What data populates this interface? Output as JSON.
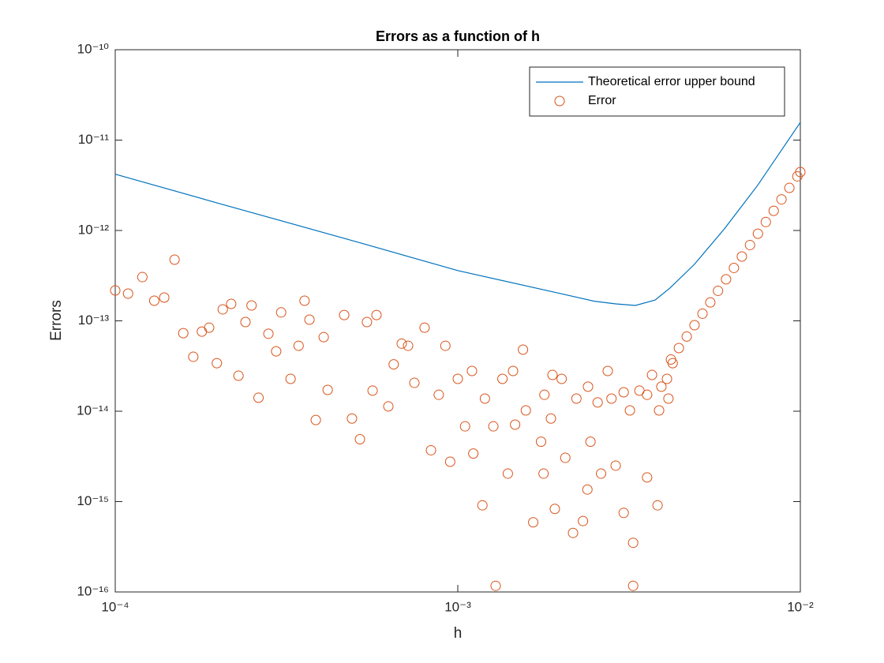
{
  "chart_data": {
    "type": "line",
    "title": "Errors as a function of h",
    "x_label": "h",
    "y_label": "Errors",
    "xscale": "log",
    "yscale": "log",
    "grid": false,
    "legend": "upper right",
    "xlim": [
      0.0001,
      0.01
    ],
    "ylim": [
      1e-16,
      1e-10
    ],
    "xticks": [
      {
        "value": 0.0001,
        "label": "10⁻⁴"
      },
      {
        "value": 0.001,
        "label": "10⁻³"
      },
      {
        "value": 0.01,
        "label": "10⁻²"
      }
    ],
    "yticks": [
      {
        "value": 1e-16,
        "label": "10⁻¹⁶"
      },
      {
        "value": 1e-15,
        "label": "10⁻¹⁵"
      },
      {
        "value": 1e-14,
        "label": "10⁻¹⁴"
      },
      {
        "value": 1e-13,
        "label": "10⁻¹³"
      },
      {
        "value": 1e-12,
        "label": "10⁻¹²"
      },
      {
        "value": 1e-11,
        "label": "10⁻¹¹"
      },
      {
        "value": 1e-10,
        "label": "10⁻¹⁰"
      }
    ],
    "series": [
      {
        "name": "Theoretical error upper bound",
        "type": "line",
        "color": "#0072bd",
        "x": [
          0.0001,
          0.0002,
          0.0005,
          0.001,
          0.002,
          0.0025,
          0.00289,
          0.0033,
          0.00377,
          0.00416,
          0.0049,
          0.006,
          0.0075,
          0.01
        ],
        "values": [
          4.2e-12,
          2e-12,
          7.6e-13,
          3.6e-13,
          2e-13,
          1.65e-13,
          1.54e-13,
          1.48e-13,
          1.7e-13,
          2.3e-13,
          4.2e-13,
          1.04e-12,
          3.15e-12,
          1.57e-11
        ]
      },
      {
        "name": "Error",
        "type": "scatter",
        "color": "#d95319",
        "x": [
          0.0001,
          0.000109,
          0.00012,
          0.00013,
          0.000139,
          0.000149,
          0.000158,
          0.000169,
          0.000179,
          0.000188,
          0.000198,
          0.000206,
          0.000218,
          0.000229,
          0.00024,
          0.00025,
          0.000262,
          0.00028,
          0.000295,
          0.000305,
          0.000325,
          0.000343,
          0.000357,
          0.000369,
          0.000385,
          0.000406,
          0.000417,
          0.000466,
          0.000491,
          0.000518,
          0.000543,
          0.000564,
          0.000579,
          0.000627,
          0.00065,
          0.000686,
          0.000716,
          0.000747,
          0.0008,
          0.000835,
          0.00088,
          0.00092,
          0.00095,
          0.001,
          0.00105,
          0.0011,
          0.00111,
          0.00118,
          0.0012,
          0.00127,
          0.00129,
          0.00135,
          0.0014,
          0.00147,
          0.00155,
          0.00158,
          0.00166,
          0.00175,
          0.00178,
          0.00187,
          0.00192,
          0.00201,
          0.00206,
          0.00217,
          0.00222,
          0.00232,
          0.00239,
          0.00244,
          0.00256,
          0.00262,
          0.00274,
          0.00289,
          0.00305,
          0.00318,
          0.00325,
          0.00325,
          0.00339,
          0.00357,
          0.00383,
          0.00393,
          0.00412,
          0.00424,
          0.00419,
          0.00442,
          0.00466,
          0.00491,
          0.00518,
          0.00546,
          0.00575,
          0.00607,
          0.0064,
          0.00675,
          0.00713,
          0.00752,
          0.00793,
          0.00836,
          0.00881,
          0.00929,
          0.0098,
          0.01,
          0.00305,
          0.00281,
          0.00357,
          0.00369,
          0.0024,
          0.00189,
          0.00145,
          0.00179,
          0.00408,
          0.00387
        ],
        "values": [
          2.17e-13,
          2e-13,
          3.05e-13,
          1.67e-13,
          1.81e-13,
          4.75e-13,
          7.3e-14,
          4e-14,
          7.6e-14,
          8.4e-14,
          3.4e-14,
          1.34e-13,
          1.54e-13,
          2.47e-14,
          9.7e-14,
          1.48e-13,
          1.41e-14,
          7.2e-14,
          4.6e-14,
          1.24e-13,
          2.28e-14,
          5.3e-14,
          1.67e-13,
          1.03e-13,
          8e-15,
          6.6e-14,
          1.72e-14,
          1.16e-13,
          8.3e-15,
          4.9e-15,
          9.7e-14,
          1.69e-14,
          1.16e-13,
          1.13e-14,
          3.3e-14,
          5.6e-14,
          5.3e-14,
          2.06e-14,
          8.4e-14,
          3.7e-15,
          1.52e-14,
          5.3e-14,
          2.76e-15,
          2.28e-14,
          6.8e-15,
          2.79e-14,
          3.4e-15,
          9.1e-16,
          1.38e-14,
          6.8e-15,
          1.17e-16,
          2.28e-14,
          2.04e-15,
          7.1e-15,
          4.8e-14,
          1.02e-14,
          5.9e-16,
          4.6e-15,
          2.04e-15,
          8.3e-15,
          8.3e-16,
          2.28e-14,
          3.05e-15,
          4.5e-16,
          1.38e-14,
          6.1e-16,
          1.36e-15,
          4.6e-15,
          1.25e-14,
          2.04e-15,
          2.79e-14,
          2.5e-15,
          7.5e-16,
          1.02e-14,
          1.17e-16,
          3.5e-16,
          1.69e-14,
          1.85e-15,
          9.1e-16,
          1.87e-14,
          1.38e-14,
          3.4e-14,
          3.73e-14,
          5e-14,
          6.7e-14,
          8.95e-14,
          1.2e-13,
          1.6e-13,
          2.15e-13,
          2.88e-13,
          3.85e-13,
          5.15e-13,
          6.9e-13,
          9.2e-13,
          1.24e-12,
          1.65e-12,
          2.21e-12,
          2.96e-12,
          3.97e-12,
          4.43e-12,
          1.62e-14,
          1.38e-14,
          1.52e-14,
          2.52e-14,
          1.87e-14,
          2.52e-14,
          2.79e-14,
          1.52e-14,
          2.28e-14,
          1.02e-14
        ]
      }
    ]
  }
}
